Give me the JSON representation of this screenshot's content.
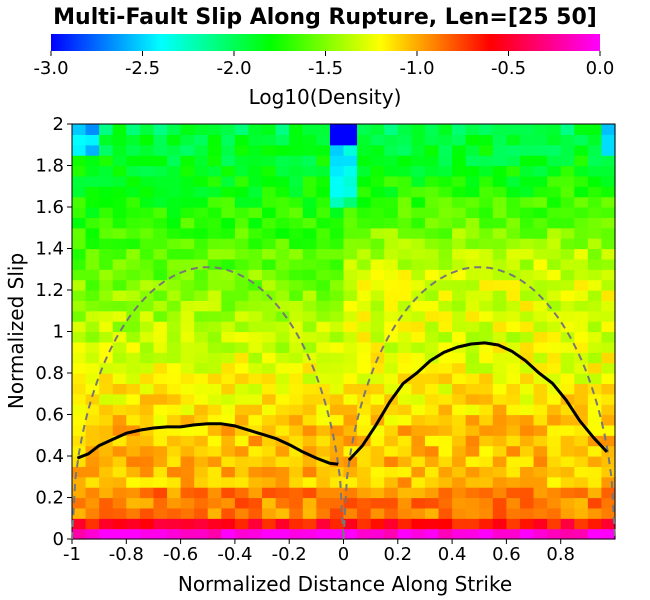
{
  "chart_data": {
    "type": "heatmap",
    "title": "Multi-Fault Slip Along Rupture, Len=[25 50]",
    "xlabel": "Normalized Distance Along Strike",
    "ylabel": "Normalized Slip",
    "xlim": [
      -1,
      1
    ],
    "ylim": [
      0,
      2
    ],
    "x_ticks": [
      "-1",
      "-0.8",
      "-0.6",
      "-0.4",
      "-0.2",
      "0",
      "0.2",
      "0.4",
      "0.6",
      "0.8"
    ],
    "x_tick_values": [
      -1,
      -0.8,
      -0.6,
      -0.4,
      -0.2,
      0,
      0.2,
      0.4,
      0.6,
      0.8
    ],
    "y_ticks": [
      "0",
      "0.2",
      "0.4",
      "0.6",
      "0.8",
      "1",
      "1.2",
      "1.4",
      "1.6",
      "1.8",
      "2"
    ],
    "y_tick_values": [
      0,
      0.2,
      0.4,
      0.6,
      0.8,
      1,
      1.2,
      1.4,
      1.6,
      1.8,
      2
    ],
    "colorbar": {
      "label": "Log10(Density)",
      "range": [
        -3.0,
        0.0
      ],
      "ticks": [
        "-3.0",
        "-2.5",
        "-2.0",
        "-1.5",
        "-1.0",
        "-0.5",
        "0.0"
      ],
      "tick_values": [
        -3.0,
        -2.5,
        -2.0,
        -1.5,
        -1.0,
        -0.5,
        0.0
      ],
      "colormap": [
        "#0000ff",
        "#00ffff",
        "#00ff00",
        "#ffff00",
        "#ff0000",
        "#ff00ff"
      ]
    },
    "series": [
      {
        "style": "solid-black",
        "color": "#000000",
        "segments": [
          {
            "x": [
              -0.98,
              -0.94,
              -0.9,
              -0.85,
              -0.8,
              -0.75,
              -0.7,
              -0.65,
              -0.6,
              -0.55,
              -0.5,
              -0.45,
              -0.4,
              -0.35,
              -0.3,
              -0.25,
              -0.2,
              -0.15,
              -0.1,
              -0.05,
              -0.02
            ],
            "y": [
              0.39,
              0.41,
              0.45,
              0.48,
              0.51,
              0.525,
              0.535,
              0.54,
              0.54,
              0.55,
              0.555,
              0.555,
              0.545,
              0.525,
              0.505,
              0.485,
              0.455,
              0.42,
              0.39,
              0.365,
              0.36
            ]
          },
          {
            "x": [
              0.02,
              0.07,
              0.12,
              0.17,
              0.22,
              0.27,
              0.32,
              0.37,
              0.42,
              0.47,
              0.52,
              0.57,
              0.62,
              0.67,
              0.72,
              0.77,
              0.82,
              0.87,
              0.92,
              0.97
            ],
            "y": [
              0.38,
              0.45,
              0.55,
              0.66,
              0.75,
              0.8,
              0.86,
              0.9,
              0.925,
              0.94,
              0.945,
              0.935,
              0.905,
              0.86,
              0.8,
              0.75,
              0.67,
              0.57,
              0.49,
              0.42
            ]
          }
        ]
      },
      {
        "style": "dashed-gray",
        "color": "#777777",
        "function": "ellipse-arcs",
        "centers": [
          -0.5,
          0.5
        ],
        "half_width": 0.5,
        "peak": 1.31
      }
    ]
  }
}
